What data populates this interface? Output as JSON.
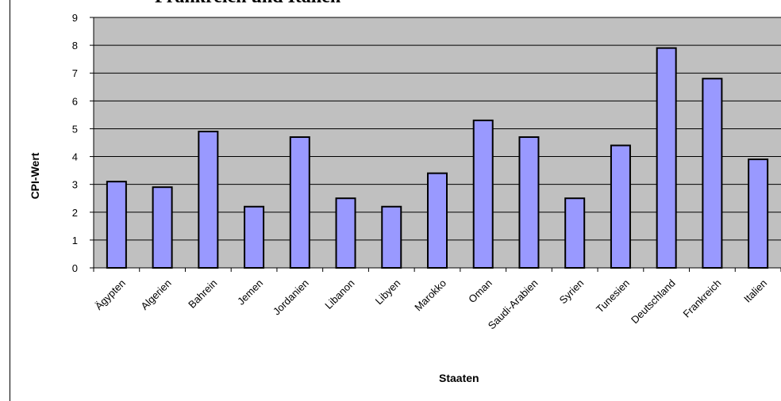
{
  "chart_data": {
    "type": "bar",
    "title": "Frankreich und Italien",
    "xlabel": "Staaten",
    "ylabel": "CPI-Wert",
    "ylim": [
      0,
      9
    ],
    "yticks": [
      "0",
      "1",
      "2",
      "3",
      "4",
      "5",
      "6",
      "7",
      "8",
      "9"
    ],
    "grid": true,
    "categories": [
      "Ägypten",
      "Algerien",
      "Bahrein",
      "Jemen",
      "Jordanien",
      "Libanon",
      "Libyen",
      "Marokko",
      "Oman",
      "Saudi-Arabien",
      "Syrien",
      "Tunesien",
      "Deutschland",
      "Frankreich",
      "Italien"
    ],
    "values": [
      3.1,
      2.9,
      4.9,
      2.2,
      4.7,
      2.5,
      2.2,
      3.4,
      5.3,
      4.7,
      2.5,
      4.4,
      7.9,
      6.8,
      3.9
    ],
    "colors": {
      "bar": "#9999ff",
      "plot_bg": "#c0c0c0",
      "grid": "#000000"
    }
  }
}
